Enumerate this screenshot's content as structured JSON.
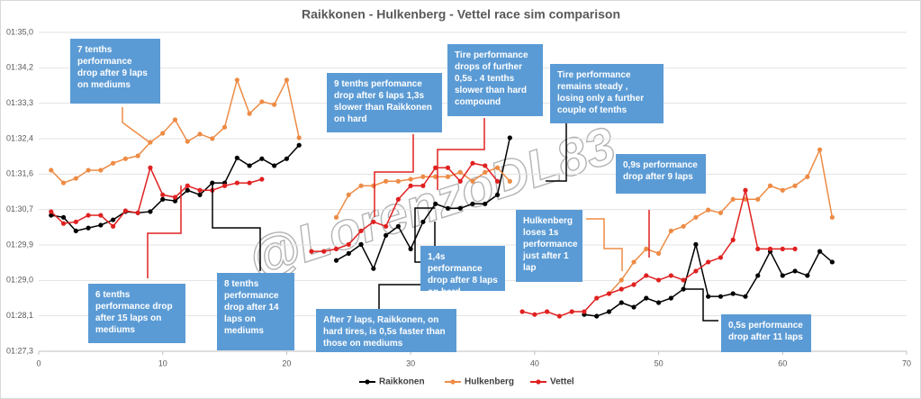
{
  "chart_data": {
    "type": "line",
    "title": "Raikkonen - Hulkenberg - Vettel race sim comparison",
    "watermark": "@LorenzoDL83",
    "x": [
      1,
      2,
      3,
      4,
      5,
      6,
      7,
      8,
      9,
      10,
      11,
      12,
      13,
      14,
      15,
      16,
      17,
      18,
      19,
      20,
      21,
      22,
      23,
      24,
      25,
      26,
      27,
      28,
      29,
      30,
      31,
      32,
      33,
      34,
      35,
      36,
      37,
      38,
      39,
      40,
      41,
      42,
      43,
      44,
      45,
      46,
      47,
      48,
      49,
      50,
      51,
      52,
      53,
      54,
      55,
      56,
      57,
      58,
      59,
      60,
      61,
      62,
      63,
      64
    ],
    "series": [
      {
        "name": "Raikkonen",
        "color": "#000000",
        "values": [
          90.58,
          90.53,
          90.2,
          90.27,
          90.34,
          90.47,
          90.67,
          90.64,
          90.67,
          90.97,
          90.93,
          91.19,
          91.08,
          91.37,
          91.37,
          91.98,
          91.79,
          91.96,
          91.79,
          91.96,
          92.29,
          null,
          null,
          89.48,
          89.65,
          89.87,
          89.28,
          90.09,
          90.31,
          89.76,
          90.42,
          90.86,
          90.75,
          90.75,
          90.86,
          90.86,
          91.08,
          92.47,
          null,
          null,
          null,
          null,
          null,
          88.16,
          88.12,
          88.23,
          88.45,
          88.34,
          88.56,
          88.45,
          88.56,
          88.78,
          89.87,
          88.6,
          88.6,
          88.67,
          88.6,
          89.11,
          89.7,
          89.11,
          89.22,
          89.11,
          89.7,
          89.44
        ]
      },
      {
        "name": "Hulkenberg",
        "color": "#ed8b45",
        "values": [
          91.68,
          91.37,
          91.48,
          91.68,
          91.68,
          91.85,
          91.96,
          92.03,
          92.36,
          92.58,
          92.91,
          92.38,
          92.56,
          92.45,
          92.73,
          93.88,
          93.06,
          93.35,
          93.28,
          93.88,
          92.47,
          null,
          null,
          90.53,
          91.08,
          91.3,
          91.3,
          91.41,
          91.41,
          91.46,
          91.52,
          91.52,
          91.52,
          91.63,
          91.41,
          91.63,
          91.74,
          91.41,
          null,
          null,
          null,
          null,
          null,
          null,
          null,
          88.67,
          89.0,
          89.44,
          89.76,
          89.65,
          90.2,
          90.31,
          90.53,
          90.71,
          90.64,
          90.97,
          90.97,
          90.97,
          91.3,
          91.19,
          91.3,
          91.52,
          92.18,
          90.53
        ]
      },
      {
        "name": "Vettel",
        "color": "#e02020",
        "values": [
          90.67,
          90.38,
          90.42,
          90.58,
          90.58,
          90.31,
          90.69,
          90.64,
          91.74,
          91.08,
          91.02,
          91.3,
          91.19,
          91.19,
          91.3,
          91.37,
          91.37,
          91.46,
          null,
          null,
          null,
          89.7,
          89.7,
          89.76,
          89.87,
          90.2,
          90.42,
          90.31,
          90.97,
          91.3,
          91.3,
          91.74,
          91.74,
          91.41,
          91.85,
          91.79,
          91.41,
          null,
          88.23,
          88.16,
          88.23,
          88.12,
          88.23,
          88.23,
          88.56,
          88.67,
          88.78,
          88.89,
          89.11,
          89.0,
          89.11,
          89.0,
          89.22,
          89.44,
          89.55,
          89.98,
          91.19,
          89.76,
          89.76,
          89.76,
          89.76,
          null,
          null,
          null
        ]
      }
    ],
    "xlim": [
      0,
      70
    ],
    "xticks": [
      0,
      10,
      20,
      30,
      40,
      50,
      60,
      70
    ],
    "ylim": [
      87.264,
      95.04
    ],
    "yticks": [
      {
        "value": 87.264,
        "label": "01:27,3"
      },
      {
        "value": 88.128,
        "label": "01:28,1"
      },
      {
        "value": 88.992,
        "label": "01:29,0"
      },
      {
        "value": 89.856,
        "label": "01:29,9"
      },
      {
        "value": 90.72,
        "label": "01:30,7"
      },
      {
        "value": 91.584,
        "label": "01:31,6"
      },
      {
        "value": 92.448,
        "label": "01:32,4"
      },
      {
        "value": 93.312,
        "label": "01:33,3"
      },
      {
        "value": 94.176,
        "label": "01:34,2"
      },
      {
        "value": 95.04,
        "label": "01:35,0"
      }
    ],
    "grid": true,
    "legend": "bottom",
    "annotations": [
      "7 tenths performance drop after 9 laps on mediums",
      "9 tenths perfomance drop after 6 laps 1,3s slower than Raikkonen on hard",
      "Tire performance drops of  further 0,5s . 4 tenths slower than hard compound",
      "Tire performance remains steady , losing only a further couple of tenths",
      "0,9s performance drop after 9 laps",
      "Hulkenberg loses 1s performance just after 1 lap",
      "1,4s performance drop after 8 laps on hard",
      "After 7 laps, Raikkonen, on hard tires,  is 0,5s faster than those on mediums",
      "8 tenths performance drop after 14 laps on mediums",
      "6 tenths performance drop after 15 laps on mediums",
      "0,5s performance drop after 11 laps"
    ]
  }
}
